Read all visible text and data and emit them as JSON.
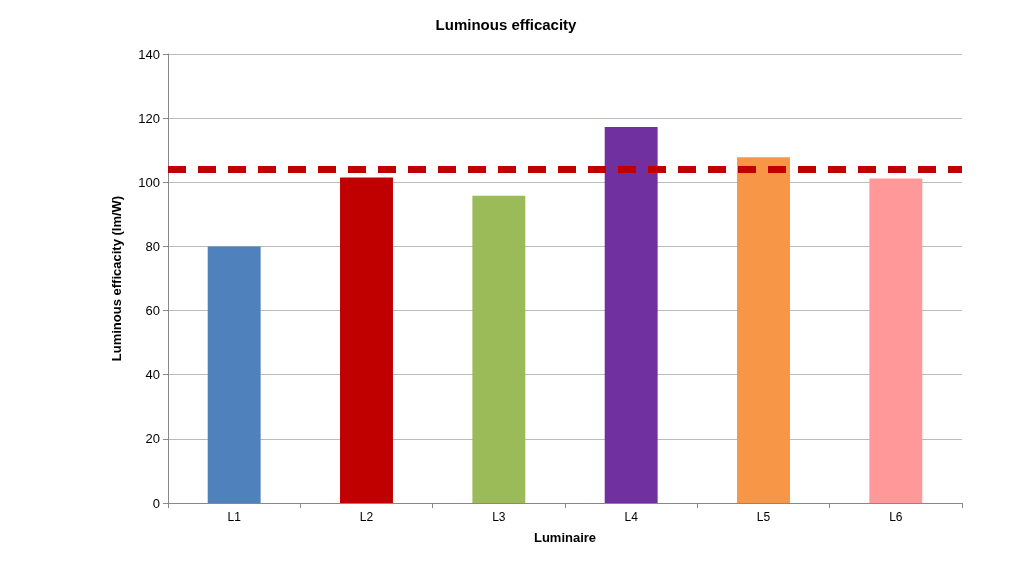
{
  "chart_data": {
    "type": "bar",
    "title": "Luminous efficacity",
    "xlabel": "Luminaire",
    "ylabel": "Luminous efficacity (lm/W)",
    "categories": [
      "L1",
      "L2",
      "L3",
      "L4",
      "L5",
      "L6"
    ],
    "values": [
      80,
      101.5,
      95.8,
      117.2,
      107.8,
      101.2
    ],
    "colors": [
      "#4f81bd",
      "#c00000",
      "#9bbb59",
      "#7030a0",
      "#f79646",
      "#ff9999"
    ],
    "ylim": [
      0,
      140
    ],
    "yticks": [
      0,
      20,
      40,
      60,
      80,
      100,
      120,
      140
    ],
    "grid": "y",
    "ref_lines": [
      {
        "axis": "y",
        "value": 104,
        "color": "#c00000",
        "line_style": "dashed"
      }
    ]
  }
}
